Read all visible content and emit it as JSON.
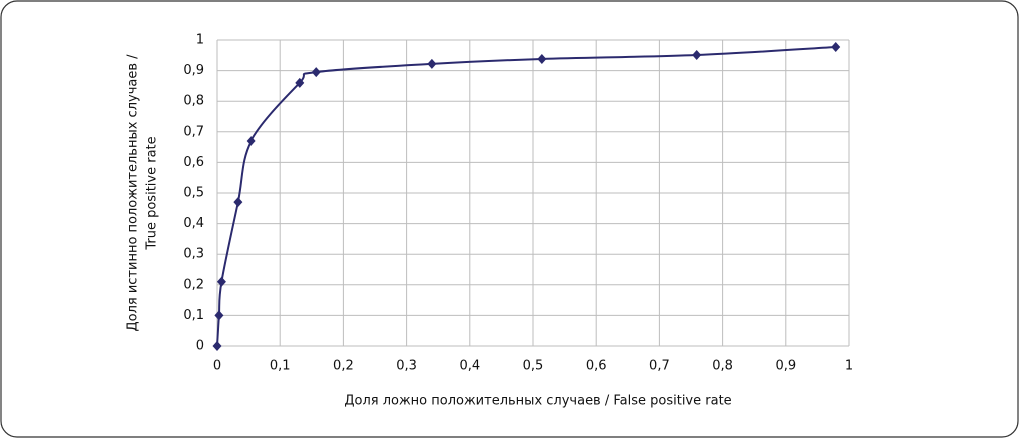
{
  "chart_data": {
    "type": "line",
    "xlabel": "Доля ложно положительных случаев / False positive rate",
    "ylabel": [
      "Доля истинно положительных случаев /",
      "True positive rate"
    ],
    "x": [
      0,
      0.003,
      0.007,
      0.033,
      0.054,
      0.131,
      0.157,
      0.34,
      0.514,
      0.759,
      0.979
    ],
    "values": [
      0,
      0.1,
      0.21,
      0.47,
      0.67,
      0.86,
      0.895,
      0.922,
      0.938,
      0.951,
      0.977
    ],
    "color": "#2b2a6e",
    "xlim": [
      0,
      1
    ],
    "ylim": [
      0,
      1
    ],
    "xticks": [
      0,
      {
        "value": 0.1,
        "label": "0,1"
      },
      {
        "value": 0.2,
        "label": "0,2"
      },
      {
        "value": 0.3,
        "label": "0,3"
      },
      {
        "value": 0.4,
        "label": "0,4"
      },
      {
        "value": 0.5,
        "label": "0,5"
      },
      {
        "value": 0.6,
        "label": "0,6"
      },
      {
        "value": 0.7,
        "label": "0,7"
      },
      {
        "value": 0.8,
        "label": "0,8"
      },
      {
        "value": 0.9,
        "label": "0,9"
      },
      1
    ],
    "yticks": [
      0,
      {
        "value": 0.1,
        "label": "0,1"
      },
      {
        "value": 0.2,
        "label": "0,2"
      },
      {
        "value": 0.3,
        "label": "0,3"
      },
      {
        "value": 0.4,
        "label": "0,4"
      },
      {
        "value": 0.5,
        "label": "0,5"
      },
      {
        "value": 0.6,
        "label": "0,6"
      },
      {
        "value": 0.7,
        "label": "0,7"
      },
      {
        "value": 0.8,
        "label": "0,8"
      },
      {
        "value": 0.9,
        "label": "0,9"
      },
      1
    ],
    "grid": true
  }
}
